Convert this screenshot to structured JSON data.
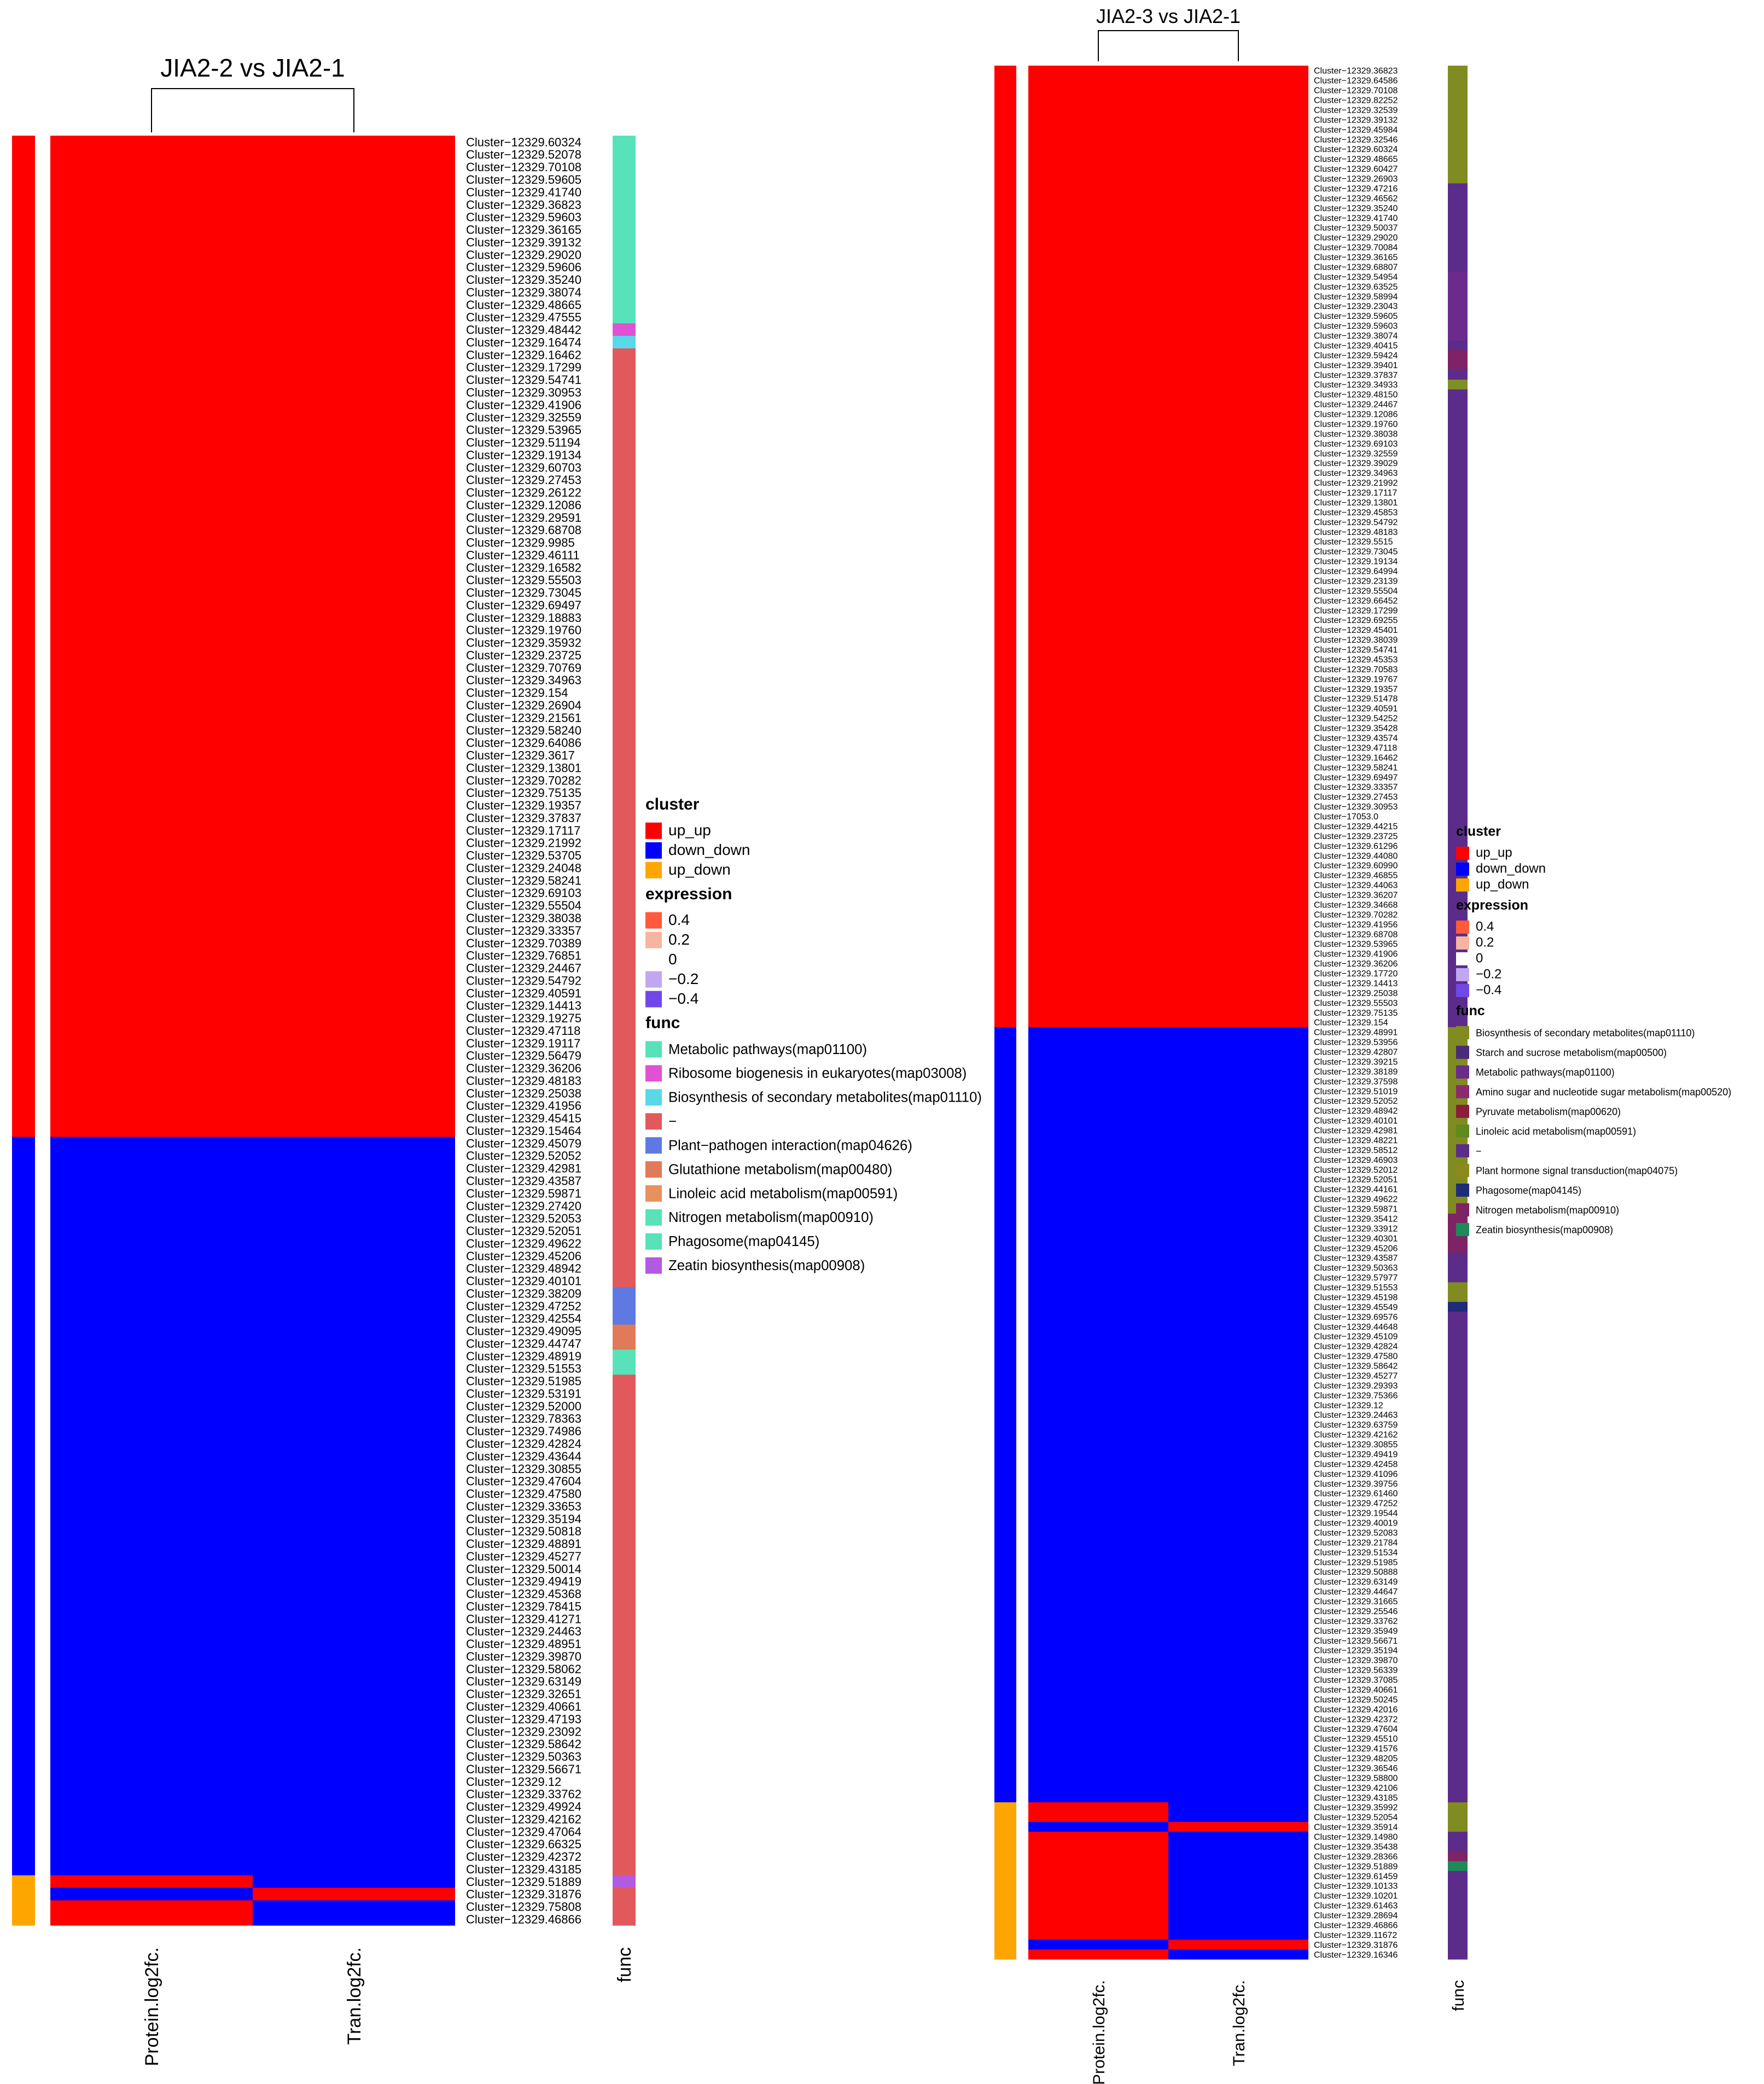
{
  "colors": {
    "up": "#FF0000",
    "down": "#0000FF",
    "cluster_up_up": "#FF0000",
    "cluster_down_down": "#0000FF",
    "cluster_up_down": "#FFA500",
    "expr_0.4": "#FF5A3C",
    "expr_0.2": "#F8B4A0",
    "expr_0": "#FFFFFF",
    "expr_-0.2": "#BFA8F0",
    "expr_-0.4": "#7048E8"
  },
  "chart_data": [
    {
      "type": "heatmap",
      "title": "JIA2-2 vs JIA2-1",
      "columns": [
        "Protein.log2fc.",
        "Tran.log2fc."
      ],
      "func_column_label": "func",
      "row_labels": [
        "Cluster−12329.60324",
        "Cluster−12329.52078",
        "Cluster−12329.70108",
        "Cluster−12329.59605",
        "Cluster−12329.41740",
        "Cluster−12329.36823",
        "Cluster−12329.59603",
        "Cluster−12329.36165",
        "Cluster−12329.39132",
        "Cluster−12329.29020",
        "Cluster−12329.59606",
        "Cluster−12329.35240",
        "Cluster−12329.38074",
        "Cluster−12329.48665",
        "Cluster−12329.47555",
        "Cluster−12329.48442",
        "Cluster−12329.16474",
        "Cluster−12329.16462",
        "Cluster−12329.17299",
        "Cluster−12329.54741",
        "Cluster−12329.30953",
        "Cluster−12329.41906",
        "Cluster−12329.32559",
        "Cluster−12329.53965",
        "Cluster−12329.51194",
        "Cluster−12329.19134",
        "Cluster−12329.60703",
        "Cluster−12329.27453",
        "Cluster−12329.26122",
        "Cluster−12329.12086",
        "Cluster−12329.29591",
        "Cluster−12329.68708",
        "Cluster−12329.9985",
        "Cluster−12329.46111",
        "Cluster−12329.16582",
        "Cluster−12329.55503",
        "Cluster−12329.73045",
        "Cluster−12329.69497",
        "Cluster−12329.18883",
        "Cluster−12329.19760",
        "Cluster−12329.35932",
        "Cluster−12329.23725",
        "Cluster−12329.70769",
        "Cluster−12329.34963",
        "Cluster−12329.154",
        "Cluster−12329.26904",
        "Cluster−12329.21561",
        "Cluster−12329.58240",
        "Cluster−12329.64086",
        "Cluster−12329.3617",
        "Cluster−12329.13801",
        "Cluster−12329.70282",
        "Cluster−12329.75135",
        "Cluster−12329.19357",
        "Cluster−12329.37837",
        "Cluster−12329.17117",
        "Cluster−12329.21992",
        "Cluster−12329.53705",
        "Cluster−12329.24048",
        "Cluster−12329.58241",
        "Cluster−12329.69103",
        "Cluster−12329.55504",
        "Cluster−12329.38038",
        "Cluster−12329.33357",
        "Cluster−12329.70389",
        "Cluster−12329.76851",
        "Cluster−12329.24467",
        "Cluster−12329.54792",
        "Cluster−12329.40591",
        "Cluster−12329.14413",
        "Cluster−12329.19275",
        "Cluster−12329.47118",
        "Cluster−12329.19117",
        "Cluster−12329.56479",
        "Cluster−12329.36206",
        "Cluster−12329.48183",
        "Cluster−12329.25038",
        "Cluster−12329.41956",
        "Cluster−12329.45415",
        "Cluster−12329.15464",
        "Cluster−12329.45079",
        "Cluster−12329.52052",
        "Cluster−12329.42981",
        "Cluster−12329.43587",
        "Cluster−12329.59871",
        "Cluster−12329.27420",
        "Cluster−12329.52053",
        "Cluster−12329.52051",
        "Cluster−12329.49622",
        "Cluster−12329.45206",
        "Cluster−12329.48942",
        "Cluster−12329.40101",
        "Cluster−12329.38209",
        "Cluster−12329.47252",
        "Cluster−12329.42554",
        "Cluster−12329.49095",
        "Cluster−12329.44747",
        "Cluster−12329.48919",
        "Cluster−12329.51553",
        "Cluster−12329.51985",
        "Cluster−12329.53191",
        "Cluster−12329.52000",
        "Cluster−12329.78363",
        "Cluster−12329.74986",
        "Cluster−12329.42824",
        "Cluster−12329.43644",
        "Cluster−12329.30855",
        "Cluster−12329.47604",
        "Cluster−12329.47580",
        "Cluster−12329.33653",
        "Cluster−12329.35194",
        "Cluster−12329.50818",
        "Cluster−12329.48891",
        "Cluster−12329.45277",
        "Cluster−12329.50014",
        "Cluster−12329.49419",
        "Cluster−12329.45368",
        "Cluster−12329.78415",
        "Cluster−12329.41271",
        "Cluster−12329.24463",
        "Cluster−12329.48951",
        "Cluster−12329.39870",
        "Cluster−12329.58062",
        "Cluster−12329.63149",
        "Cluster−12329.32651",
        "Cluster−12329.40661",
        "Cluster−12329.47193",
        "Cluster−12329.23092",
        "Cluster−12329.58642",
        "Cluster−12329.50363",
        "Cluster−12329.56671",
        "Cluster−12329.12",
        "Cluster−12329.33762",
        "Cluster−12329.49924",
        "Cluster−12329.42162",
        "Cluster−12329.47064",
        "Cluster−12329.66325",
        "Cluster−12329.42372",
        "Cluster−12329.43185",
        "Cluster−12329.51889",
        "Cluster−12329.31876",
        "Cluster−12329.75808",
        "Cluster−12329.46866"
      ],
      "cluster_segments": [
        {
          "cluster": "up_up",
          "rows": 80
        },
        {
          "cluster": "down_down",
          "rows": 59
        },
        {
          "cluster": "up_down",
          "rows": 4
        }
      ],
      "values": {
        "Protein.log2fc.": "up for up_up rows; down for down_down rows; up_down rows: up, down, up, up",
        "Tran.log2fc.": "up for up_up rows; down for down_down rows; up_down rows: down, up, down, down"
      },
      "protein_up_down_pattern": [
        "up",
        "down",
        "up",
        "up"
      ],
      "tran_up_down_pattern": [
        "down",
        "up",
        "down",
        "down"
      ],
      "func_segments": [
        {
          "color": "#57E2BA",
          "rows": 15
        },
        {
          "color": "#E052D3",
          "rows": 1
        },
        {
          "color": "#58D8E8",
          "rows": 1
        },
        {
          "color": "#E2595B",
          "rows": 75
        },
        {
          "color": "#5E7AE2",
          "rows": 3
        },
        {
          "color": "#E17A58",
          "rows": 2
        },
        {
          "color": "#57E2BA",
          "rows": 2
        },
        {
          "color": "#E2595B",
          "rows": 40
        },
        {
          "color": "#B25AE0",
          "rows": 1
        },
        {
          "color": "#E2595B",
          "rows": 3
        }
      ],
      "legend": {
        "cluster_title": "cluster",
        "cluster_items": [
          {
            "label": "up_up",
            "color": "#FF0000"
          },
          {
            "label": "down_down",
            "color": "#0000FF"
          },
          {
            "label": "up_down",
            "color": "#FFA500"
          }
        ],
        "expression_title": "expression",
        "expression_items": [
          {
            "label": "0.4",
            "color": "#FF5A3C"
          },
          {
            "label": "0.2",
            "color": "#F8B4A0"
          },
          {
            "label": "0",
            "color": "#FFFFFF"
          },
          {
            "label": "−0.2",
            "color": "#BFA8F0"
          },
          {
            "label": "−0.4",
            "color": "#7048E8"
          }
        ],
        "func_title": "func",
        "func_items": [
          {
            "label": "Metabolic pathways(map01100)",
            "color": "#57E2BA"
          },
          {
            "label": "Ribosome biogenesis in eukaryotes(map03008)",
            "color": "#E052D3"
          },
          {
            "label": "Biosynthesis of secondary metabolites(map01110)",
            "color": "#58D8E8"
          },
          {
            "label": "−",
            "color": "#E2595B"
          },
          {
            "label": "Plant−pathogen interaction(map04626)",
            "color": "#5E7AE2"
          },
          {
            "label": "Glutathione metabolism(map00480)",
            "color": "#E17A58"
          },
          {
            "label": "Linoleic acid metabolism(map00591)",
            "color": "#E8915E"
          },
          {
            "label": "Nitrogen metabolism(map00910)",
            "color": "#57E2BA"
          },
          {
            "label": "Phagosome(map04145)",
            "color": "#57E2BA"
          },
          {
            "label": "Zeatin biosynthesis(map00908)",
            "color": "#B25AE0"
          }
        ]
      }
    },
    {
      "type": "heatmap",
      "title": "JIA2-3 vs JIA2-1",
      "columns": [
        "Protein.log2fc.",
        "Tran.log2fc."
      ],
      "func_column_label": "func",
      "row_labels": [
        "Cluster−12329.36823",
        "Cluster−12329.64586",
        "Cluster−12329.70108",
        "Cluster−12329.82252",
        "Cluster−12329.32539",
        "Cluster−12329.39132",
        "Cluster−12329.45984",
        "Cluster−12329.32546",
        "Cluster−12329.60324",
        "Cluster−12329.48665",
        "Cluster−12329.60427",
        "Cluster−12329.26903",
        "Cluster−12329.47216",
        "Cluster−12329.46562",
        "Cluster−12329.35240",
        "Cluster−12329.41740",
        "Cluster−12329.50037",
        "Cluster−12329.29020",
        "Cluster−12329.70084",
        "Cluster−12329.36165",
        "Cluster−12329.68807",
        "Cluster−12329.54954",
        "Cluster−12329.63525",
        "Cluster−12329.58994",
        "Cluster−12329.23043",
        "Cluster−12329.59605",
        "Cluster−12329.59603",
        "Cluster−12329.38074",
        "Cluster−12329.40415",
        "Cluster−12329.59424",
        "Cluster−12329.39401",
        "Cluster−12329.37837",
        "Cluster−12329.34933",
        "Cluster−12329.48150",
        "Cluster−12329.24467",
        "Cluster−12329.12086",
        "Cluster−12329.19760",
        "Cluster−12329.38038",
        "Cluster−12329.69103",
        "Cluster−12329.32559",
        "Cluster−12329.39029",
        "Cluster−12329.34963",
        "Cluster−12329.21992",
        "Cluster−12329.17117",
        "Cluster−12329.13801",
        "Cluster−12329.45853",
        "Cluster−12329.54792",
        "Cluster−12329.48183",
        "Cluster−12329.5515",
        "Cluster−12329.73045",
        "Cluster−12329.19134",
        "Cluster−12329.64994",
        "Cluster−12329.23139",
        "Cluster−12329.55504",
        "Cluster−12329.66452",
        "Cluster−12329.17299",
        "Cluster−12329.69255",
        "Cluster−12329.45401",
        "Cluster−12329.38039",
        "Cluster−12329.54741",
        "Cluster−12329.45353",
        "Cluster−12329.70583",
        "Cluster−12329.19767",
        "Cluster−12329.19357",
        "Cluster−12329.51478",
        "Cluster−12329.40591",
        "Cluster−12329.54252",
        "Cluster−12329.35428",
        "Cluster−12329.43574",
        "Cluster−12329.47118",
        "Cluster−12329.16462",
        "Cluster−12329.58241",
        "Cluster−12329.69497",
        "Cluster−12329.33357",
        "Cluster−12329.27453",
        "Cluster−12329.30953",
        "Cluster−17053.0",
        "Cluster−12329.44215",
        "Cluster−12329.23725",
        "Cluster−12329.61296",
        "Cluster−12329.44080",
        "Cluster−12329.60990",
        "Cluster−12329.46855",
        "Cluster−12329.44063",
        "Cluster−12329.36207",
        "Cluster−12329.34668",
        "Cluster−12329.70282",
        "Cluster−12329.41956",
        "Cluster−12329.68708",
        "Cluster−12329.53965",
        "Cluster−12329.41906",
        "Cluster−12329.36206",
        "Cluster−12329.17720",
        "Cluster−12329.14413",
        "Cluster−12329.25038",
        "Cluster−12329.55503",
        "Cluster−12329.75135",
        "Cluster−12329.154",
        "Cluster−12329.48991",
        "Cluster−12329.53956",
        "Cluster−12329.42807",
        "Cluster−12329.39215",
        "Cluster−12329.38189",
        "Cluster−12329.37598",
        "Cluster−12329.51019",
        "Cluster−12329.52052",
        "Cluster−12329.48942",
        "Cluster−12329.40101",
        "Cluster−12329.42981",
        "Cluster−12329.48221",
        "Cluster−12329.58512",
        "Cluster−12329.46903",
        "Cluster−12329.52012",
        "Cluster−12329.52051",
        "Cluster−12329.44161",
        "Cluster−12329.49622",
        "Cluster−12329.59871",
        "Cluster−12329.35412",
        "Cluster−12329.33912",
        "Cluster−12329.40301",
        "Cluster−12329.45206",
        "Cluster−12329.43587",
        "Cluster−12329.50363",
        "Cluster−12329.57977",
        "Cluster−12329.51553",
        "Cluster−12329.45198",
        "Cluster−12329.45549",
        "Cluster−12329.69576",
        "Cluster−12329.44648",
        "Cluster−12329.45109",
        "Cluster−12329.42824",
        "Cluster−12329.47580",
        "Cluster−12329.58642",
        "Cluster−12329.45277",
        "Cluster−12329.29393",
        "Cluster−12329.75366",
        "Cluster−12329.12",
        "Cluster−12329.24463",
        "Cluster−12329.63759",
        "Cluster−12329.42162",
        "Cluster−12329.30855",
        "Cluster−12329.49419",
        "Cluster−12329.42458",
        "Cluster−12329.41096",
        "Cluster−12329.39756",
        "Cluster−12329.61460",
        "Cluster−12329.47252",
        "Cluster−12329.19544",
        "Cluster−12329.40019",
        "Cluster−12329.52083",
        "Cluster−12329.21784",
        "Cluster−12329.51534",
        "Cluster−12329.51985",
        "Cluster−12329.50888",
        "Cluster−12329.63149",
        "Cluster−12329.44647",
        "Cluster−12329.31665",
        "Cluster−12329.25546",
        "Cluster−12329.33762",
        "Cluster−12329.35949",
        "Cluster−12329.56671",
        "Cluster−12329.35194",
        "Cluster−12329.39870",
        "Cluster−12329.56339",
        "Cluster−12329.37085",
        "Cluster−12329.40661",
        "Cluster−12329.50245",
        "Cluster−12329.42016",
        "Cluster−12329.42372",
        "Cluster−12329.47604",
        "Cluster−12329.45510",
        "Cluster−12329.41576",
        "Cluster−12329.48205",
        "Cluster−12329.36546",
        "Cluster−12329.58800",
        "Cluster−12329.42106",
        "Cluster−12329.43185",
        "Cluster−12329.35992",
        "Cluster−12329.52054",
        "Cluster−12329.35914",
        "Cluster−12329.14980",
        "Cluster−12329.35438",
        "Cluster−12329.28366",
        "Cluster−12329.51889",
        "Cluster−12329.61459",
        "Cluster−12329.10133",
        "Cluster−12329.10201",
        "Cluster−12329.61463",
        "Cluster−12329.28694",
        "Cluster−12329.46866",
        "Cluster−12329.11672",
        "Cluster−12329.31876",
        "Cluster−12329.16346"
      ],
      "cluster_segments": [
        {
          "cluster": "up_up",
          "rows": 98
        },
        {
          "cluster": "down_down",
          "rows": 79
        },
        {
          "cluster": "up_down",
          "rows": 16
        }
      ],
      "values": {
        "Protein.log2fc.": "up for up_up rows; down for down_down rows; up_down rows per protein_up_down_pattern",
        "Tran.log2fc.": "up for up_up rows; down for down_down rows; up_down rows per tran_up_down_pattern"
      },
      "protein_up_down_pattern": [
        "up",
        "up",
        "down",
        "up",
        "up",
        "up",
        "up",
        "up",
        "up",
        "up",
        "up",
        "up",
        "up",
        "up",
        "down",
        "up"
      ],
      "tran_up_down_pattern": [
        "down",
        "down",
        "up",
        "down",
        "down",
        "down",
        "down",
        "down",
        "down",
        "down",
        "down",
        "down",
        "down",
        "down",
        "up",
        "down"
      ],
      "func_segments": [
        {
          "color": "#808B21",
          "rows": 12
        },
        {
          "color": "#5B2C8A",
          "rows": 9
        },
        {
          "color": "#6C2B8C",
          "rows": 7
        },
        {
          "color": "#5B2C8A",
          "rows": 1
        },
        {
          "color": "#7E2366",
          "rows": 2
        },
        {
          "color": "#5B2C8A",
          "rows": 1
        },
        {
          "color": "#818E23",
          "rows": 1
        },
        {
          "color": "#5B2C8A",
          "rows": 65
        },
        {
          "color": "#808B21",
          "rows": 19
        },
        {
          "color": "#7E2366",
          "rows": 4
        },
        {
          "color": "#5B2C8A",
          "rows": 3
        },
        {
          "color": "#808B21",
          "rows": 2
        },
        {
          "color": "#1E2C7A",
          "rows": 1
        },
        {
          "color": "#5B2C8A",
          "rows": 50
        },
        {
          "color": "#808B21",
          "rows": 3
        },
        {
          "color": "#5B2C8A",
          "rows": 2
        },
        {
          "color": "#7E2366",
          "rows": 1
        },
        {
          "color": "#1E8A57",
          "rows": 1
        },
        {
          "color": "#5B2C8A",
          "rows": 9
        }
      ],
      "legend": {
        "cluster_title": "cluster",
        "cluster_items": [
          {
            "label": "up_up",
            "color": "#FF0000"
          },
          {
            "label": "down_down",
            "color": "#0000FF"
          },
          {
            "label": "up_down",
            "color": "#FFA500"
          }
        ],
        "expression_title": "expression",
        "expression_items": [
          {
            "label": "0.4",
            "color": "#FF5A3C"
          },
          {
            "label": "0.2",
            "color": "#F8B4A0"
          },
          {
            "label": "0",
            "color": "#FFFFFF"
          },
          {
            "label": "−0.2",
            "color": "#BFA8F0"
          },
          {
            "label": "−0.4",
            "color": "#7048E8"
          }
        ],
        "func_title": "func",
        "func_items": [
          {
            "label": "Biosynthesis of secondary metabolites(map01110)",
            "color": "#808B21"
          },
          {
            "label": "Starch and sucrose metabolism(map00500)",
            "color": "#4B2A7A"
          },
          {
            "label": "Metabolic pathways(map01100)",
            "color": "#6C2B8C"
          },
          {
            "label": "Amino sugar and nucleotide sugar metabolism(map00520)",
            "color": "#8B2A6E"
          },
          {
            "label": "Pyruvate metabolism(map00620)",
            "color": "#8A1E3A"
          },
          {
            "label": "Linoleic acid metabolism(map00591)",
            "color": "#5F8A1E"
          },
          {
            "label": "−",
            "color": "#5B2C8A"
          },
          {
            "label": "Plant hormone signal transduction(map04075)",
            "color": "#8A8A1E"
          },
          {
            "label": "Phagosome(map04145)",
            "color": "#1E2C7A"
          },
          {
            "label": "Nitrogen metabolism(map00910)",
            "color": "#7E2366"
          },
          {
            "label": "Zeatin biosynthesis(map00908)",
            "color": "#1E8A57"
          }
        ]
      }
    }
  ]
}
